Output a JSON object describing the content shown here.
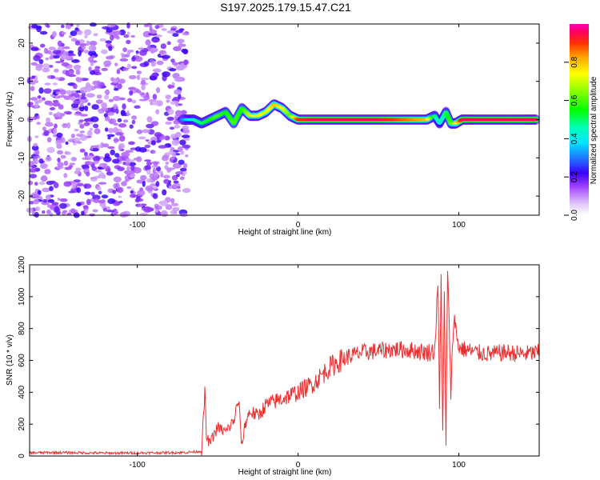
{
  "title": "S197.2025.179.15.47.C21",
  "chart_data": [
    {
      "type": "heatmap",
      "xlabel": "Height of straight line (km)",
      "ylabel": "Frequency (Hz)",
      "xlim": [
        -167,
        150
      ],
      "ylim": [
        -25,
        25
      ],
      "xticks": [
        -100,
        0,
        100
      ],
      "yticks": [
        -20,
        -10,
        0,
        10,
        20
      ],
      "noise_region": {
        "x": [
          -167,
          -69
        ],
        "y": [
          -25,
          25
        ],
        "level": 0.1
      },
      "ridge": {
        "x": [
          -72,
          -65,
          -60,
          -55,
          -50,
          -45,
          -40,
          -35,
          -30,
          -25,
          -20,
          -15,
          -10,
          -5,
          0,
          10,
          20,
          30,
          40,
          50,
          60,
          70,
          80,
          85,
          88,
          92,
          95,
          98,
          102,
          110,
          120,
          130,
          140,
          148
        ],
        "y": [
          0,
          0,
          -1,
          0,
          1,
          2,
          -1,
          3,
          1,
          1,
          2,
          4,
          3,
          1,
          0,
          0,
          0,
          0,
          0,
          0,
          0,
          0,
          0,
          1,
          -1,
          2,
          -1,
          -1,
          0,
          0,
          0,
          0,
          0,
          0
        ],
        "amplitude": [
          0.3,
          0.45,
          0.5,
          0.55,
          0.6,
          0.55,
          0.6,
          0.55,
          0.7,
          0.75,
          0.7,
          0.8,
          0.75,
          0.6,
          0.9,
          0.95,
          0.95,
          0.95,
          0.95,
          0.95,
          0.9,
          0.85,
          0.8,
          0.5,
          0.4,
          0.5,
          0.6,
          0.7,
          0.95,
          0.95,
          0.95,
          0.95,
          0.95,
          0.95
        ]
      },
      "colorbar": {
        "label": "Normalized spectral amplitude",
        "range": [
          0,
          1
        ],
        "ticks": [
          0.0,
          0.2,
          0.4,
          0.6,
          0.8
        ],
        "tick_labels": [
          "0.0",
          "0.2",
          "0.4",
          "0.6",
          "0.8"
        ]
      }
    },
    {
      "type": "line",
      "xlabel": "Height of straight line (km)",
      "ylabel": "SNR (10 * v/v)",
      "xlim": [
        -167,
        150
      ],
      "ylim": [
        0,
        1200
      ],
      "xticks": [
        -100,
        0,
        100
      ],
      "yticks": [
        0,
        200,
        400,
        600,
        800,
        1000,
        1200
      ],
      "color": "#e8312f",
      "series": [
        {
          "x": [
            -167,
            -150,
            -120,
            -90,
            -70,
            -60,
            -58,
            -57,
            -55,
            -50,
            -45,
            -40,
            -37,
            -35,
            -33,
            -30,
            -25,
            -20,
            -10,
            0,
            10,
            20,
            30,
            40,
            50,
            60,
            70,
            80,
            85,
            87,
            88,
            89,
            90,
            91,
            92,
            93,
            95,
            97,
            98,
            100,
            110,
            120,
            130,
            140,
            150
          ],
          "y": [
            20,
            22,
            18,
            20,
            22,
            30,
            400,
            120,
            80,
            180,
            150,
            220,
            350,
            60,
            200,
            280,
            250,
            320,
            360,
            400,
            460,
            560,
            620,
            650,
            660,
            670,
            665,
            650,
            660,
            1100,
            300,
            1130,
            150,
            1000,
            60,
            1200,
            400,
            900,
            800,
            680,
            650,
            640,
            650,
            640,
            650
          ]
        }
      ]
    }
  ]
}
